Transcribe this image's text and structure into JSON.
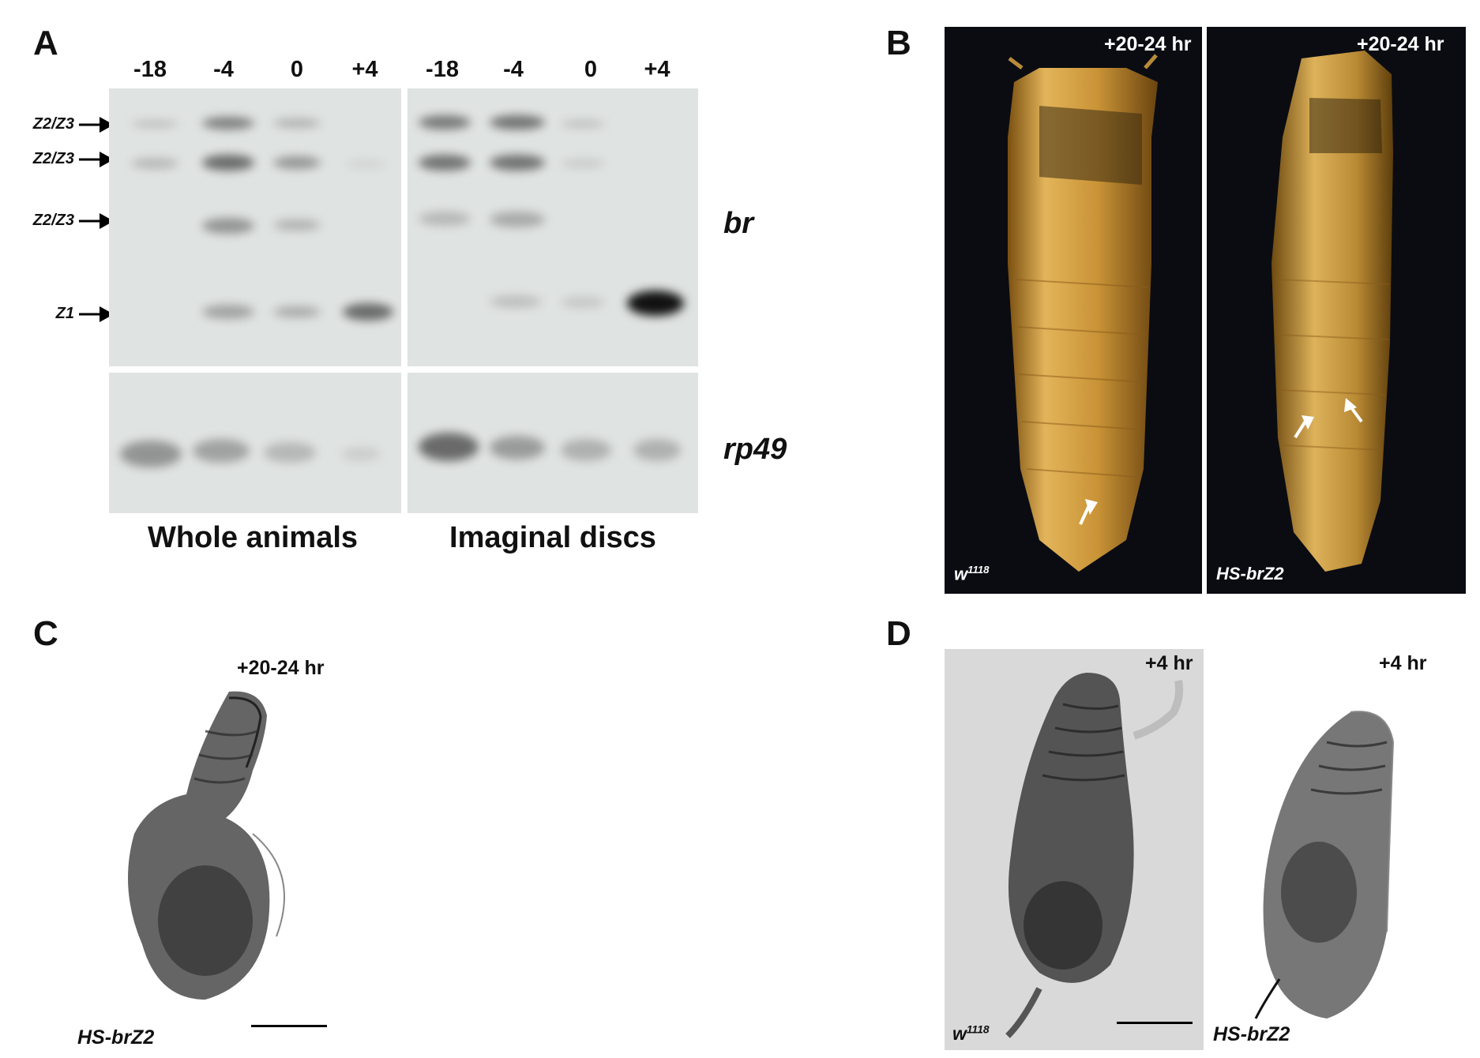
{
  "panelA": {
    "letter": "A",
    "lanes": [
      "-18",
      "-4",
      "0",
      "+4",
      "-18",
      "-4",
      "0",
      "+4"
    ],
    "band_labels": [
      "Z2/Z3",
      "Z2/Z3",
      "Z2/Z3",
      "Z1"
    ],
    "gene_top": "br",
    "gene_bottom": "rp49",
    "group_left": "Whole animals",
    "group_right": "Imaginal discs"
  },
  "panelB": {
    "letter": "B",
    "time_left": "+20-24 hr",
    "time_right": "+20-24 hr",
    "geno_left_base": "w",
    "geno_left_sup": "1118",
    "geno_right": "HS-brZ2"
  },
  "panelC": {
    "letter": "C",
    "time": "+20-24 hr",
    "geno": "HS-brZ2"
  },
  "panelD": {
    "letter": "D",
    "time_left": "+4 hr",
    "time_right": "+4 hr",
    "geno_left_base": "w",
    "geno_left_sup": "1118",
    "geno_right": "HS-brZ2"
  }
}
